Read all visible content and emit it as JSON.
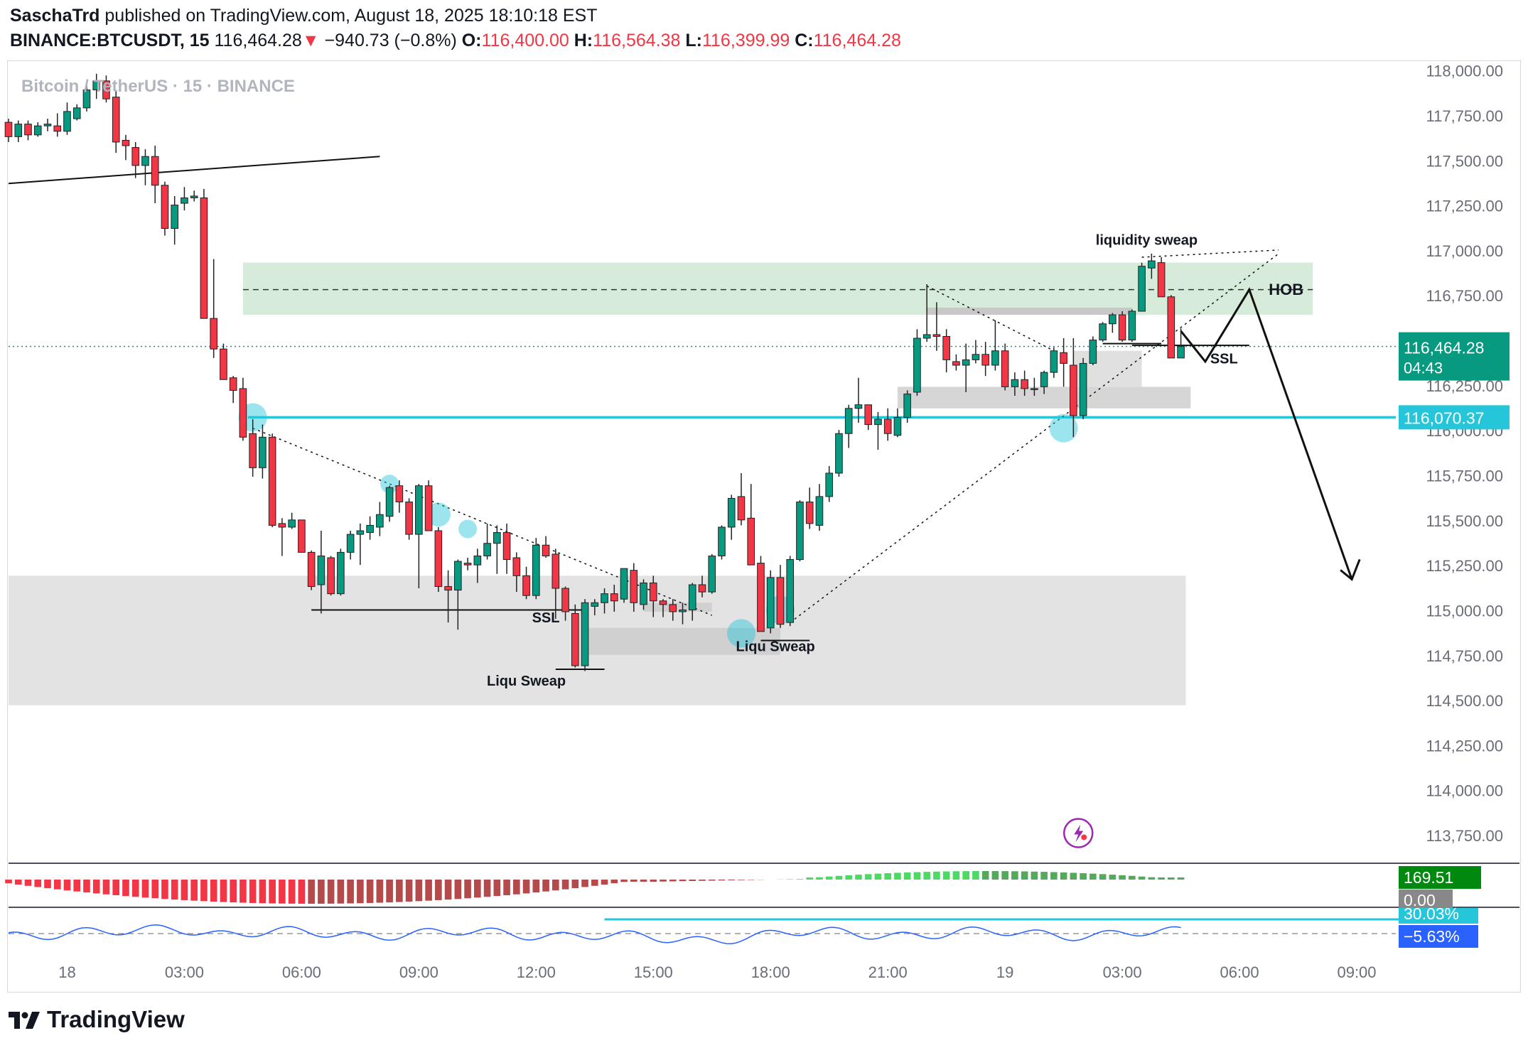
{
  "header": {
    "publisher": "SaschaTrd",
    "published_text": "published on TradingView.com, August 18, 2025 18:10:18 EST",
    "symbol": "BINANCE:BTCUSDT, 15",
    "last": "116,464.28",
    "change_arrow": "▼",
    "change": "−940.73 (−0.8%)",
    "o_label": "O:",
    "o_value": "116,400.00",
    "h_label": "H:",
    "h_value": "116,564.38",
    "l_label": "L:",
    "l_value": "116,399.99",
    "c_label": "C:",
    "c_value": "116,464.28"
  },
  "colors": {
    "up": "#089981",
    "down": "#f23645",
    "cyan": "#26c6da",
    "zone_green": "#cfe8d4",
    "zone_gray": "#e3e3e3",
    "last_bg": "#089981"
  },
  "footer": {
    "brand": "TradingView",
    "logo_icon": "tradingview-logo-icon"
  },
  "chart_data": {
    "type": "candlestick",
    "title": "Bitcoin / TetherUS · 15 · BINANCE",
    "timeframe": "15",
    "y_range": [
      113600,
      118050
    ],
    "y_ticks": [
      113750,
      114000,
      114250,
      114500,
      114750,
      115000,
      115250,
      115500,
      115750,
      116000,
      116250,
      116500,
      116750,
      117000,
      117250,
      117500,
      117750,
      118000
    ],
    "y_tick_labels": [
      "113,750.00",
      "114,000.00",
      "114,250.00",
      "114,500.00",
      "114,750.00",
      "115,000.00",
      "115,250.00",
      "115,500.00",
      "115,750.00",
      "116,000.00",
      "116,250.00",
      "116,500.00",
      "116,750.00",
      "117,000.00",
      "117,250.00",
      "117,500.00",
      "117,750.00",
      "118,000.00"
    ],
    "x_labels": [
      {
        "t": 0,
        "label": "18"
      },
      {
        "t": 12,
        "label": "03:00"
      },
      {
        "t": 24,
        "label": "06:00"
      },
      {
        "t": 36,
        "label": "09:00"
      },
      {
        "t": 48,
        "label": "12:00"
      },
      {
        "t": 60,
        "label": "15:00"
      },
      {
        "t": 72,
        "label": "18:00"
      },
      {
        "t": 84,
        "label": "21:00"
      },
      {
        "t": 96,
        "label": "19"
      },
      {
        "t": 108,
        "label": "03:00"
      },
      {
        "t": 120,
        "label": "06:00"
      },
      {
        "t": 132,
        "label": "09:00"
      }
    ],
    "x_range": [
      -6,
      136
    ],
    "candles": [
      [
        -6,
        117710,
        117730,
        117600,
        117630
      ],
      [
        -5,
        117630,
        117720,
        117600,
        117700
      ],
      [
        -4,
        117700,
        117720,
        117610,
        117640
      ],
      [
        -3,
        117640,
        117710,
        117630,
        117690
      ],
      [
        -2,
        117690,
        117730,
        117660,
        117700
      ],
      [
        -1,
        117690,
        117760,
        117630,
        117660
      ],
      [
        0,
        117660,
        117820,
        117640,
        117770
      ],
      [
        1,
        117730,
        117810,
        117720,
        117790
      ],
      [
        2,
        117790,
        117920,
        117770,
        117890
      ],
      [
        3,
        117890,
        117980,
        117840,
        117940
      ],
      [
        4,
        117940,
        117970,
        117820,
        117840
      ],
      [
        5,
        117850,
        117890,
        117540,
        117600
      ],
      [
        6,
        117610,
        117640,
        117500,
        117580
      ],
      [
        7,
        117570,
        117600,
        117400,
        117470
      ],
      [
        8,
        117470,
        117560,
        117360,
        117520
      ],
      [
        9,
        117520,
        117580,
        117260,
        117360
      ],
      [
        10,
        117360,
        117380,
        117080,
        117120
      ],
      [
        11,
        117120,
        117300,
        117030,
        117250
      ],
      [
        12,
        117260,
        117350,
        117220,
        117290
      ],
      [
        13,
        117290,
        117330,
        117270,
        117300
      ],
      [
        14,
        117290,
        117340,
        116620,
        116620
      ],
      [
        15,
        116620,
        116950,
        116400,
        116450
      ],
      [
        16,
        116450,
        116480,
        116280,
        116280
      ],
      [
        17,
        116290,
        116300,
        116150,
        116220
      ],
      [
        18,
        116230,
        116290,
        115940,
        115960
      ],
      [
        19,
        115980,
        116060,
        115740,
        115790
      ],
      [
        20,
        115790,
        116030,
        115730,
        115960
      ],
      [
        21,
        115960,
        115980,
        115460,
        115470
      ],
      [
        22,
        115480,
        115510,
        115300,
        115460
      ],
      [
        23,
        115460,
        115540,
        115450,
        115500
      ],
      [
        24,
        115500,
        115500,
        115320,
        115320
      ],
      [
        25,
        115320,
        115330,
        115110,
        115130
      ],
      [
        26,
        115140,
        115440,
        114980,
        115300
      ],
      [
        27,
        115290,
        115300,
        115080,
        115090
      ],
      [
        28,
        115090,
        115340,
        115080,
        115320
      ],
      [
        29,
        115320,
        115440,
        115280,
        115420
      ],
      [
        30,
        115420,
        115480,
        115250,
        115440
      ],
      [
        31,
        115430,
        115520,
        115390,
        115470
      ],
      [
        32,
        115460,
        115600,
        115410,
        115530
      ],
      [
        33,
        115520,
        115690,
        115490,
        115680
      ],
      [
        34,
        115690,
        115720,
        115540,
        115600
      ],
      [
        35,
        115600,
        115620,
        115390,
        115420
      ],
      [
        36,
        115420,
        115700,
        115120,
        115690
      ],
      [
        37,
        115690,
        115720,
        115460,
        115440
      ],
      [
        38,
        115440,
        115460,
        115100,
        115130
      ],
      [
        39,
        115130,
        115220,
        114930,
        115110
      ],
      [
        40,
        115110,
        115280,
        114890,
        115270
      ],
      [
        41,
        115260,
        115290,
        115220,
        115250
      ],
      [
        42,
        115250,
        115340,
        115150,
        115300
      ],
      [
        43,
        115300,
        115480,
        115280,
        115370
      ],
      [
        44,
        115370,
        115470,
        115200,
        115430
      ],
      [
        45,
        115430,
        115480,
        115200,
        115280
      ],
      [
        46,
        115290,
        115320,
        115100,
        115190
      ],
      [
        47,
        115190,
        115240,
        115060,
        115080
      ],
      [
        48,
        115080,
        115400,
        115060,
        115360
      ],
      [
        49,
        115360,
        115410,
        115290,
        115300
      ],
      [
        50,
        115310,
        115340,
        114950,
        115120
      ],
      [
        51,
        115120,
        115130,
        114940,
        114990
      ],
      [
        52,
        114980,
        115030,
        114680,
        114690
      ],
      [
        53,
        114690,
        115060,
        114660,
        115040
      ],
      [
        54,
        115020,
        115060,
        114970,
        115040
      ],
      [
        55,
        115040,
        115120,
        114980,
        115090
      ],
      [
        56,
        115090,
        115140,
        114990,
        115050
      ],
      [
        57,
        115060,
        115230,
        115040,
        115230
      ],
      [
        58,
        115220,
        115260,
        114990,
        115040
      ],
      [
        59,
        115030,
        115170,
        115000,
        115150
      ],
      [
        60,
        115150,
        115190,
        114960,
        115050
      ],
      [
        61,
        115050,
        115060,
        114960,
        115030
      ],
      [
        62,
        115030,
        115060,
        114940,
        114990
      ],
      [
        63,
        114990,
        115040,
        114920,
        115000
      ],
      [
        64,
        115000,
        115150,
        114940,
        115140
      ],
      [
        65,
        115140,
        115190,
        115070,
        115100
      ],
      [
        66,
        115100,
        115310,
        115090,
        115300
      ],
      [
        67,
        115300,
        115470,
        115280,
        115460
      ],
      [
        68,
        115460,
        115640,
        115390,
        115620
      ],
      [
        69,
        115630,
        115760,
        115470,
        115500
      ],
      [
        70,
        115510,
        115700,
        115290,
        115250
      ],
      [
        71,
        115260,
        115300,
        114890,
        114880
      ],
      [
        72,
        114900,
        115220,
        114870,
        115180
      ],
      [
        73,
        115180,
        115250,
        114900,
        114920
      ],
      [
        74,
        114930,
        115300,
        114910,
        115280
      ],
      [
        75,
        115280,
        115610,
        115270,
        115600
      ],
      [
        76,
        115600,
        115680,
        115450,
        115480
      ],
      [
        77,
        115470,
        115700,
        115440,
        115630
      ],
      [
        78,
        115630,
        115800,
        115600,
        115760
      ],
      [
        79,
        115760,
        116000,
        115740,
        115980
      ],
      [
        80,
        115980,
        116140,
        115900,
        116120
      ],
      [
        81,
        116120,
        116290,
        116040,
        116140
      ],
      [
        82,
        116140,
        116140,
        116000,
        116030
      ],
      [
        83,
        116030,
        116100,
        115890,
        116060
      ],
      [
        84,
        116060,
        116120,
        115940,
        115980
      ],
      [
        85,
        115970,
        116120,
        115960,
        116070
      ],
      [
        86,
        116070,
        116220,
        116040,
        116200
      ],
      [
        87,
        116210,
        116560,
        116190,
        116510
      ],
      [
        88,
        116510,
        116810,
        116490,
        116530
      ],
      [
        89,
        116530,
        116710,
        116440,
        116520
      ],
      [
        90,
        116520,
        116560,
        116320,
        116390
      ],
      [
        91,
        116380,
        116420,
        116330,
        116360
      ],
      [
        92,
        116360,
        116480,
        116210,
        116390
      ],
      [
        93,
        116390,
        116500,
        116370,
        116420
      ],
      [
        94,
        116420,
        116490,
        116300,
        116360
      ],
      [
        95,
        116360,
        116610,
        116330,
        116440
      ],
      [
        96,
        116440,
        116480,
        116220,
        116240
      ],
      [
        97,
        116240,
        116320,
        116190,
        116280
      ],
      [
        98,
        116280,
        116330,
        116190,
        116230
      ],
      [
        99,
        116230,
        116290,
        116190,
        116230
      ],
      [
        100,
        116240,
        116330,
        116200,
        116320
      ],
      [
        101,
        116320,
        116460,
        116290,
        116440
      ],
      [
        102,
        116430,
        116510,
        116240,
        116370
      ],
      [
        103,
        116360,
        116510,
        115960,
        116080
      ],
      [
        104,
        116080,
        116400,
        116060,
        116370
      ],
      [
        105,
        116370,
        116520,
        116360,
        116500
      ],
      [
        106,
        116500,
        116600,
        116490,
        116590
      ],
      [
        107,
        116590,
        116650,
        116540,
        116640
      ],
      [
        108,
        116640,
        116660,
        116490,
        116500
      ],
      [
        109,
        116500,
        116670,
        116490,
        116660
      ],
      [
        110,
        116660,
        116930,
        116660,
        116910
      ],
      [
        111,
        116900,
        116980,
        116840,
        116940
      ],
      [
        112,
        116930,
        116960,
        116740,
        116740
      ],
      [
        113,
        116740,
        116750,
        116400,
        116400
      ],
      [
        114,
        116400,
        116564.38,
        116399.99,
        116464.28
      ]
    ],
    "annotations": [
      {
        "type": "text",
        "text": "liquidity sweap"
      },
      {
        "type": "text",
        "text": "HOB"
      },
      {
        "type": "text",
        "text": "SSL"
      },
      {
        "type": "text",
        "text": "SSL"
      },
      {
        "type": "text",
        "text": "Liqu Sweap"
      },
      {
        "type": "text",
        "text": "Liqu Sweap"
      }
    ],
    "horizontal_line": {
      "price": 116070.37,
      "label": "116,070.37"
    },
    "zones": {
      "hob": {
        "from": 116640,
        "to": 116930
      },
      "demand": {
        "from": 114470,
        "to": 115190
      }
    },
    "last_price": {
      "label": "116,464.28",
      "countdown": "04:43"
    },
    "oscillator": {
      "value_label": "169.51",
      "zero_label": "0.00"
    },
    "percent_panel": {
      "upper_label": "30.03%",
      "lower_label": "−5.63%"
    }
  }
}
